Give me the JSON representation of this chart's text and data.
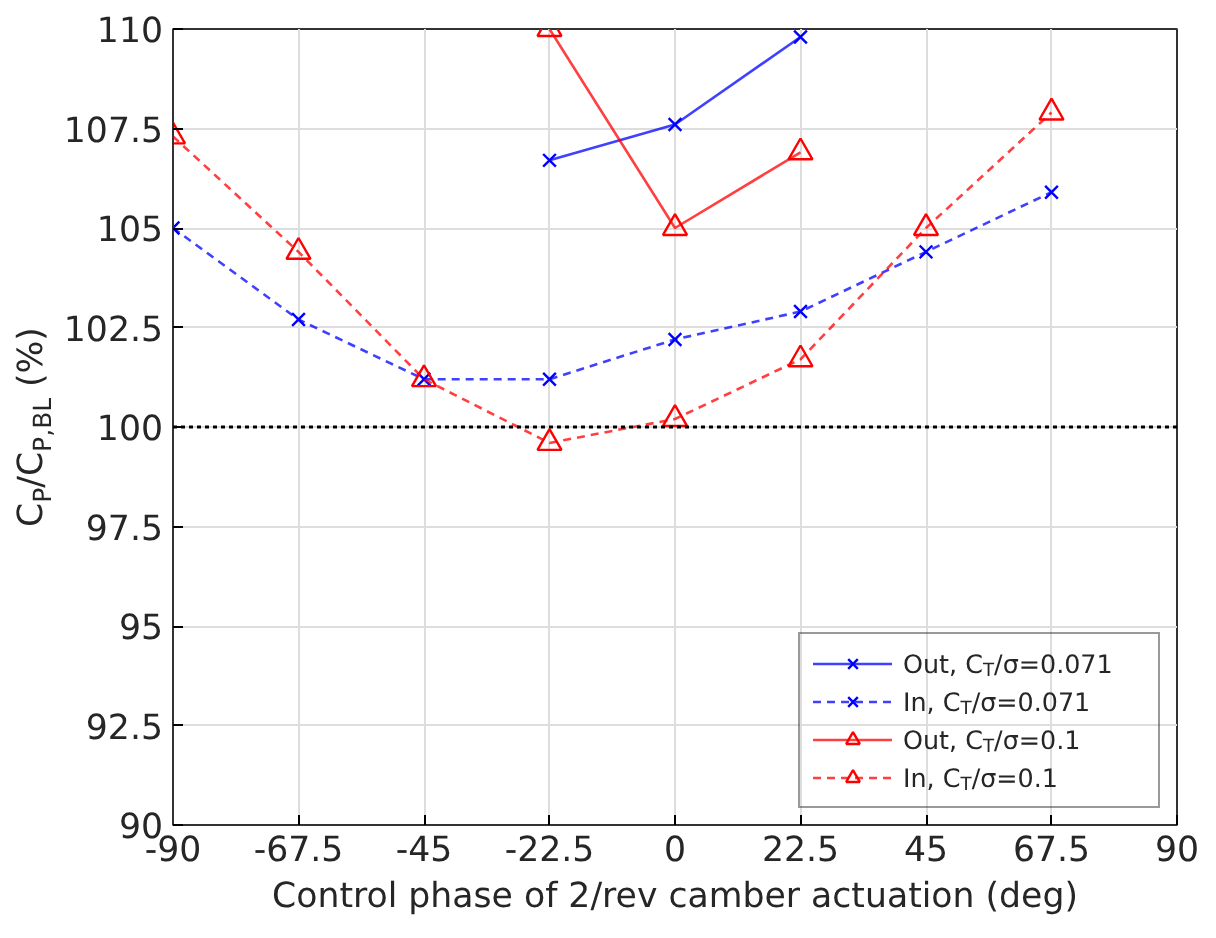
{
  "chart_data": {
    "type": "line",
    "xlabel": "Control phase of 2/rev camber actuation (deg)",
    "ylabel": "C$_{P}$/C$_{P,BL}$ (%)",
    "x": [
      -90,
      -67.5,
      -45,
      -22.5,
      0,
      22.5,
      45,
      67.5
    ],
    "series": [
      {
        "name": "Out, C$_{T}$/σ=0.071",
        "color": "#0000ff",
        "marker": "cross",
        "line_style": "solid",
        "values": [
          null,
          null,
          null,
          106.7,
          107.6,
          109.8,
          null,
          null
        ]
      },
      {
        "name": "In, C$_{T}$/σ=0.071",
        "color": "#0000ff",
        "marker": "cross",
        "line_style": "dashed",
        "values": [
          105.0,
          102.7,
          101.2,
          101.2,
          102.2,
          102.9,
          104.4,
          105.9
        ]
      },
      {
        "name": "Out, C$_{T}$/σ=0.1",
        "color": "#ff0000",
        "marker": "triangle",
        "line_style": "solid",
        "values": [
          null,
          null,
          null,
          110.0,
          105.0,
          106.9,
          null,
          null
        ]
      },
      {
        "name": "In, C$_{T}$/σ=0.1",
        "color": "#ff0000",
        "marker": "triangle",
        "line_style": "dashed",
        "values": [
          107.3,
          104.4,
          101.2,
          99.6,
          100.2,
          101.7,
          105.0,
          107.9
        ]
      }
    ],
    "xlim": [
      -90,
      90
    ],
    "xticks": [
      -90,
      -67.5,
      -45,
      -22.5,
      0,
      22.5,
      45,
      67.5,
      90
    ],
    "ylim": [
      90,
      110
    ],
    "yticks": [
      90,
      92.5,
      95,
      97.5,
      100,
      102.5,
      105,
      107.5,
      110
    ],
    "ref_lines": [
      {
        "axis": "y",
        "value": 100,
        "label": null,
        "color": "#000000",
        "line_style": "dotted"
      }
    ],
    "grid": true,
    "legend": "bottom right"
  }
}
